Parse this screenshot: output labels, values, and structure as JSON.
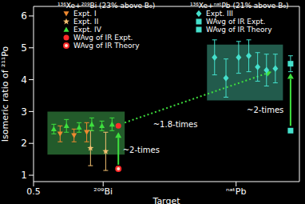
{
  "chart_data": {
    "type": "scatter",
    "x_label": "Target",
    "y_label": "Isomeric ratio of ²¹¹Po",
    "xlim": [
      0.5,
      2.6
    ],
    "xticks": [
      0.5,
      {
        "value": 1.05,
        "label": "²⁰⁹Bi"
      },
      {
        "value": 2.1,
        "label": "ⁿᵃᵗPb"
      }
    ],
    "ylim": [
      0.8,
      6.3
    ],
    "yticks": [
      1,
      2,
      3,
      4,
      5,
      6
    ],
    "groups": [
      {
        "title": "¹³⁶Xe+²⁰⁹Bi (23% above B₀)",
        "series": [
          {
            "name": "Expt. I",
            "color": "#f08a30",
            "marker": "triangle-down",
            "x": [
              0.71,
              0.82,
              0.92
            ],
            "values": [
              2.3,
              2.25,
              2.35
            ],
            "errors": [
              0.25,
              0.2,
              0.3
            ]
          },
          {
            "name": "Expt. II",
            "color": "#f3c070",
            "marker": "star",
            "x": [
              0.95,
              1.07
            ],
            "values": [
              1.85,
              1.75
            ],
            "errors": [
              0.55,
              0.6
            ]
          },
          {
            "name": "Expt. IV",
            "color": "#3ee03e",
            "marker": "triangle",
            "x": [
              0.66,
              0.76,
              0.86,
              0.96,
              1.04,
              1.12
            ],
            "values": [
              2.45,
              2.55,
              2.5,
              2.6,
              2.55,
              2.6
            ],
            "errors": [
              0.15,
              0.2,
              0.15,
              0.2,
              0.15,
              0.2
            ]
          },
          {
            "name": "WAvg of IR Expt.",
            "color": "#ff2a2a",
            "marker": "circle",
            "x": [
              1.17
            ],
            "values": [
              2.55
            ]
          },
          {
            "name": "WAvg of IR Theory",
            "color": "#ff2a2a",
            "marker": "circle-open",
            "x": [
              1.17
            ],
            "values": [
              1.2
            ]
          }
        ]
      },
      {
        "title": "¹³⁶Xe+ⁿᵃᵗPb (21% above B₀)",
        "series": [
          {
            "name": "Expt. III",
            "color": "#45e0cc",
            "marker": "diamond",
            "x": [
              1.93,
              2.02,
              2.12,
              2.2,
              2.27,
              2.34,
              2.41
            ],
            "values": [
              4.7,
              4.05,
              4.7,
              4.75,
              4.4,
              4.3,
              4.35
            ],
            "errors": [
              0.55,
              0.6,
              0.5,
              0.5,
              0.45,
              0.5,
              0.45
            ]
          },
          {
            "name": "WAvg of IR Expt.",
            "color": "#45e0cc",
            "marker": "square",
            "x": [
              2.53
            ],
            "values": [
              4.5
            ],
            "errors": [
              0.25
            ]
          },
          {
            "name": "WAvg of IR Theory",
            "color": "#45e0cc",
            "marker": "square",
            "x": [
              2.53
            ],
            "values": [
              2.4
            ]
          }
        ]
      }
    ],
    "boxes": [
      {
        "x": [
          0.61,
          1.22
        ],
        "y": [
          1.65,
          3.0
        ],
        "color": "#2f7a3a"
      },
      {
        "x": [
          1.87,
          2.47
        ],
        "y": [
          3.35,
          5.1
        ],
        "color": "#2d7a66"
      }
    ],
    "arrows": [
      {
        "from": [
          1.17,
          1.33
        ],
        "to": [
          1.17,
          2.35
        ],
        "color": "#3ee03e",
        "line_style": "solid"
      },
      {
        "from": [
          2.53,
          2.55
        ],
        "to": [
          2.53,
          4.2
        ],
        "color": "#3ee03e",
        "line_style": "solid"
      },
      {
        "from": [
          1.22,
          2.65
        ],
        "to": [
          2.38,
          4.25
        ],
        "color": "#3ee03e",
        "line_style": "dotted"
      }
    ],
    "annotations": [
      {
        "text": "~2-times",
        "x": 1.35,
        "y": 1.8
      },
      {
        "text": "~2-times",
        "x": 2.33,
        "y": 3.05
      },
      {
        "text": "~1.8-times",
        "x": 1.62,
        "y": 2.6
      }
    ]
  }
}
